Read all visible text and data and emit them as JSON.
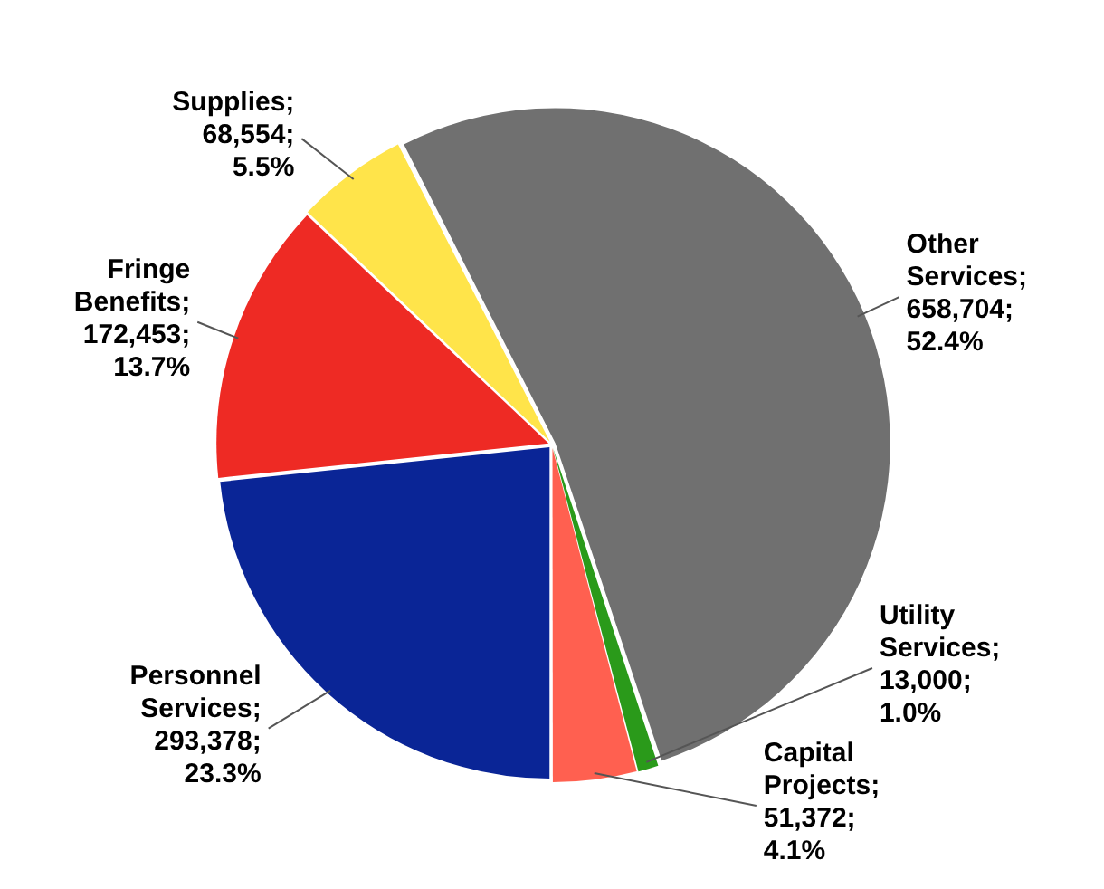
{
  "chart_data": {
    "type": "pie",
    "categories": [
      "Other Services",
      "Utility Services",
      "Capital Projects",
      "Personnel Services",
      "Fringe Benefits",
      "Supplies"
    ],
    "values": [
      658704,
      13000,
      51372,
      293378,
      172453,
      68554
    ],
    "colors": [
      "#707070",
      "#2a9a1a",
      "#ff6050",
      "#0a2596",
      "#ee2a24",
      "#ffe44a"
    ],
    "value_labels": [
      "; 658,704; 52.4%",
      "; 13,000; 1.0%",
      "; 51,372; 4.1%",
      "; 293,378; 23.3%",
      "; 172,453; 13.7%",
      "; 68,554; 5.5%"
    ],
    "legend": false
  }
}
